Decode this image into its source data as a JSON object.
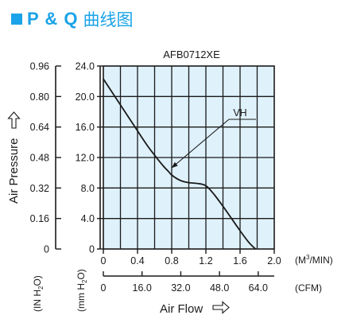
{
  "heading": {
    "prefix": "P & Q",
    "suffix": "曲线图"
  },
  "colors": {
    "accent": "#1aa3e8",
    "plot_bg": "#dff1fb",
    "grid": "#1a1a1a",
    "curve": "#1a1a1a"
  },
  "chart_data": {
    "type": "line",
    "title": "AFB0712XE",
    "series": [
      {
        "name": "VH",
        "x": [
          0,
          0.1,
          0.2,
          0.3,
          0.4,
          0.5,
          0.6,
          0.7,
          0.76,
          0.8,
          0.9,
          1.0,
          1.1,
          1.2,
          1.3,
          1.4,
          1.5,
          1.6,
          1.7,
          1.78
        ],
        "y": [
          22.3,
          20.6,
          18.9,
          17.2,
          15.5,
          13.8,
          12.3,
          10.9,
          10.2,
          9.7,
          9.0,
          8.7,
          8.6,
          8.3,
          7.1,
          5.6,
          4.0,
          2.4,
          0.9,
          0
        ]
      }
    ],
    "x_axis_m3": {
      "label": "Air Flow",
      "unit": "(M³/MIN)",
      "unit_base": "(M",
      "unit_sup": "3",
      "unit_tail": "/MIN)",
      "range": [
        0,
        2.0
      ],
      "ticks": [
        "0",
        "0.4",
        "0.8",
        "1.2",
        "1.6",
        "2.0"
      ],
      "tick_values": [
        0,
        0.4,
        0.8,
        1.2,
        1.6,
        2.0
      ]
    },
    "x_axis_cfm": {
      "unit": "(CFM)",
      "ticks": [
        "0",
        "16.0",
        "32.0",
        "48.0",
        "64.0"
      ],
      "tick_values_m3": [
        0,
        0.4531,
        0.9062,
        1.3593,
        1.8124
      ]
    },
    "y_axis_mm": {
      "label": "Air Pressure",
      "unit": "(mm H2O)",
      "unit_a": "(mm H",
      "unit_sub": "2",
      "unit_b": "O)",
      "range": [
        0,
        24.0
      ],
      "ticks": [
        "0",
        "4.0",
        "8.0",
        "12.0",
        "16.0",
        "20.0",
        "24.0"
      ],
      "tick_values": [
        0,
        4,
        8,
        12,
        16,
        20,
        24
      ]
    },
    "y_axis_in": {
      "unit": "(IN H2O)",
      "unit_a": "(IN H",
      "unit_sub": "2",
      "unit_b": "O)",
      "ticks": [
        "0",
        "0.16",
        "0.32",
        "0.48",
        "0.64",
        "0.80",
        "0.96"
      ]
    },
    "annotations": [
      {
        "text": "VH",
        "target_x": 0.76,
        "target_y": 10.2
      }
    ],
    "grid": true
  }
}
